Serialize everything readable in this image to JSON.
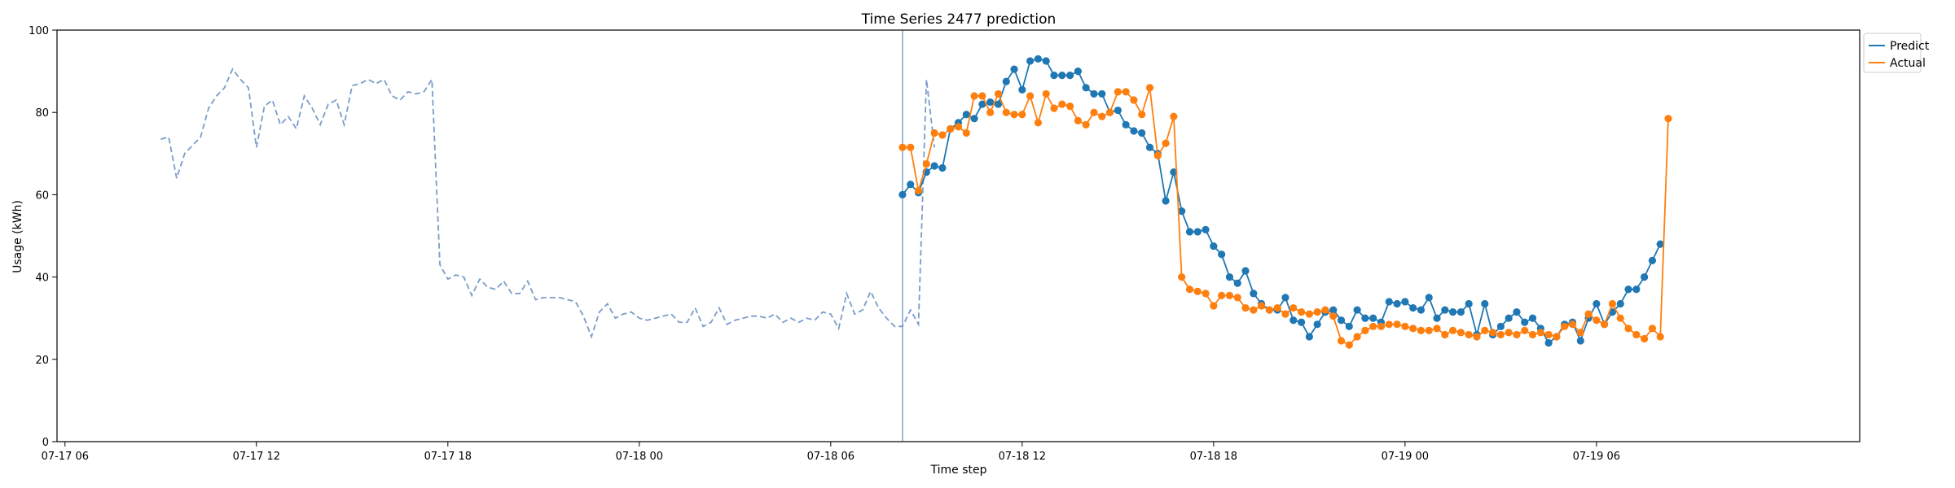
{
  "chart_data": {
    "type": "line",
    "title": "Time Series 2477 prediction",
    "xlabel": "Time step",
    "ylabel": "Usage (kWh)",
    "ylim": [
      0,
      100
    ],
    "xlim": [
      "07-17 05:45",
      "07-19 14:15"
    ],
    "x_ticks": [
      {
        "value": "07-17 06:00",
        "label": "07-17 06"
      },
      {
        "value": "07-17 12:00",
        "label": "07-17 12"
      },
      {
        "value": "07-17 18:00",
        "label": "07-17 18"
      },
      {
        "value": "07-18 00:00",
        "label": "07-18 00"
      },
      {
        "value": "07-18 06:00",
        "label": "07-18 06"
      },
      {
        "value": "07-18 12:00",
        "label": "07-18 12"
      },
      {
        "value": "07-18 18:00",
        "label": "07-18 18"
      },
      {
        "value": "07-19 00:00",
        "label": "07-19 00"
      },
      {
        "value": "07-19 06:00",
        "label": "07-19 06"
      }
    ],
    "y_ticks": [
      0,
      20,
      40,
      60,
      80,
      100
    ],
    "grid": false,
    "legend_position": "top-right-outside",
    "split_marker_x": "07-18 08:15",
    "interval_minutes": 15,
    "history": {
      "start": "07-17 09:00",
      "color": "#7b9cc9",
      "values": [
        73.5,
        74.0,
        64.0,
        70.0,
        72.0,
        74.0,
        81.0,
        84.0,
        86.0,
        90.5,
        88.0,
        86.0,
        71.5,
        81.5,
        83.0,
        77.0,
        79.0,
        76.0,
        84.0,
        81.0,
        77.0,
        82.0,
        83.0,
        77.0,
        86.5,
        87.0,
        88.0,
        87.0,
        88.0,
        84.0,
        83.0,
        85.0,
        84.5,
        85.0,
        88.0,
        43.0,
        39.5,
        40.5,
        40.0,
        35.5,
        39.5,
        37.5,
        37.0,
        39.0,
        36.0,
        36.0,
        39.0,
        34.5,
        35.0,
        35.0,
        35.0,
        34.5,
        34.0,
        30.5,
        25.5,
        31.5,
        33.5,
        30.0,
        31.0,
        31.5,
        30.0,
        29.5,
        30.0,
        30.5,
        31.0,
        29.0,
        29.0,
        32.5,
        28.0,
        29.0,
        32.5,
        28.5,
        29.5,
        30.0,
        30.5,
        30.5,
        30.0,
        31.0,
        29.0,
        30.0,
        29.0,
        30.0,
        29.5,
        31.5,
        31.0,
        27.5,
        36.0,
        31.0,
        32.0,
        36.5,
        32.5,
        30.0,
        28.0,
        28.0,
        32.0,
        28.5,
        88.0,
        71.5
      ]
    },
    "series": [
      {
        "name": "Predict",
        "color": "#1f77b4",
        "start": "07-18 08:15",
        "values": [
          60.0,
          62.5,
          60.5,
          65.5,
          67.0,
          66.5,
          76.0,
          77.5,
          79.5,
          78.5,
          82.0,
          82.5,
          82.0,
          87.5,
          90.5,
          85.5,
          92.5,
          93.0,
          92.5,
          89.0,
          89.0,
          89.0,
          90.0,
          86.0,
          84.5,
          84.5,
          80.0,
          80.5,
          77.0,
          75.5,
          75.0,
          71.5,
          70.0,
          58.5,
          65.5,
          56.0,
          51.0,
          51.0,
          51.5,
          47.5,
          45.5,
          40.0,
          38.5,
          41.5,
          36.0,
          33.5,
          32.0,
          32.0,
          35.0,
          29.5,
          29.0,
          25.5,
          28.5,
          31.5,
          32.0,
          29.5,
          28.0,
          32.0,
          30.0,
          30.0,
          29.0,
          34.0,
          33.5,
          34.0,
          32.5,
          32.0,
          35.0,
          30.0,
          32.0,
          31.5,
          31.5,
          33.5,
          26.0,
          33.5,
          26.0,
          28.0,
          30.0,
          31.5,
          29.0,
          30.0,
          27.5,
          24.0,
          25.5,
          28.5,
          29.0,
          24.5,
          30.0,
          33.5,
          28.5,
          31.5,
          33.5,
          37.0,
          37.0,
          40.0,
          44.0,
          48.0
        ]
      },
      {
        "name": "Actual",
        "color": "#ff7f0e",
        "start": "07-18 08:15",
        "values": [
          71.5,
          71.5,
          61.0,
          67.5,
          75.0,
          74.5,
          76.0,
          76.5,
          75.0,
          84.0,
          84.0,
          80.0,
          84.5,
          80.0,
          79.5,
          79.5,
          84.0,
          77.5,
          84.5,
          81.0,
          82.0,
          81.5,
          78.0,
          77.0,
          80.0,
          79.0,
          80.0,
          85.0,
          85.0,
          83.0,
          79.5,
          86.0,
          69.5,
          72.5,
          79.0,
          40.0,
          37.0,
          36.5,
          36.0,
          33.0,
          35.5,
          35.5,
          35.0,
          32.5,
          32.0,
          33.0,
          32.0,
          32.5,
          31.0,
          32.5,
          31.5,
          31.0,
          31.5,
          32.0,
          30.5,
          24.5,
          23.5,
          25.5,
          27.0,
          28.0,
          28.0,
          28.5,
          28.5,
          28.0,
          27.5,
          27.0,
          27.0,
          27.5,
          26.0,
          27.0,
          26.5,
          26.0,
          25.5,
          27.0,
          26.5,
          26.0,
          26.5,
          26.0,
          27.0,
          26.0,
          26.5,
          26.0,
          25.5,
          28.0,
          28.5,
          26.5,
          31.0,
          29.5,
          28.5,
          33.5,
          30.0,
          27.5,
          26.0,
          25.0,
          27.5,
          25.5,
          78.5
        ]
      }
    ]
  }
}
